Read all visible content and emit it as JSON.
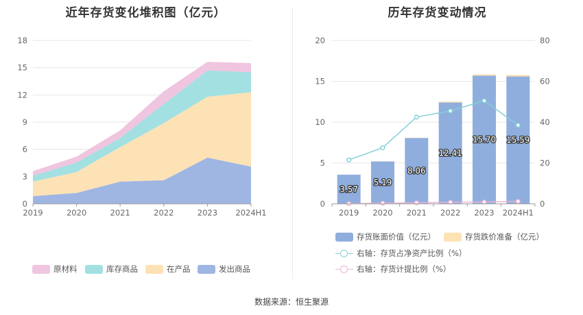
{
  "footer": "数据来源：恒生聚源",
  "chart_data": [
    {
      "type": "area",
      "stacked": true,
      "title": "近年存货变化堆积图（亿元）",
      "categories": [
        "2019",
        "2020",
        "2021",
        "2022",
        "2023",
        "2024H1"
      ],
      "ylim": [
        0,
        18
      ],
      "yticks": [
        "0",
        "3",
        "6",
        "9",
        "12",
        "15",
        "18"
      ],
      "grid": true,
      "legend_position": "bottom",
      "series": [
        {
          "name": "发出商品",
          "color": "#9fb6e3",
          "values": [
            0.85,
            1.2,
            2.45,
            2.6,
            5.1,
            4.1
          ]
        },
        {
          "name": "在产品",
          "color": "#fde2b5",
          "values": [
            1.6,
            2.3,
            3.8,
            6.3,
            6.7,
            8.2
          ]
        },
        {
          "name": "库存商品",
          "color": "#a2e0e2",
          "values": [
            0.65,
            1.05,
            1.0,
            2.1,
            2.9,
            2.2
          ]
        },
        {
          "name": "原材料",
          "color": "#efc5df",
          "values": [
            0.5,
            0.65,
            0.85,
            1.4,
            0.95,
            1.0
          ]
        }
      ],
      "legend_order": [
        "原材料",
        "库存商品",
        "在产品",
        "发出商品"
      ]
    },
    {
      "type": "bar",
      "title": "历年存货变动情况",
      "categories": [
        "2019",
        "2020",
        "2021",
        "2022",
        "2023",
        "2024H1"
      ],
      "ylim": [
        0,
        20
      ],
      "yticks": [
        "0",
        "5",
        "10",
        "15",
        "20"
      ],
      "y2lim": [
        0,
        80
      ],
      "y2ticks": [
        "0",
        "20",
        "40",
        "60",
        "80"
      ],
      "grid": true,
      "legend_position": "bottom",
      "bars": [
        {
          "name": "存货账面价值（亿元）",
          "color": "#8faedd",
          "values": [
            3.57,
            5.19,
            8.06,
            12.41,
            15.7,
            15.59
          ],
          "labels": [
            "3.57",
            "5.19",
            "8.06",
            "12.41",
            "15.70",
            "15.59"
          ]
        },
        {
          "name": "存货跌价准备（亿元）",
          "color": "#fde2b5",
          "values": [
            0.0,
            0.02,
            0.04,
            0.12,
            0.15,
            0.2
          ]
        }
      ],
      "lines": [
        {
          "name": "右轴：存货占净资产比例（%）",
          "color": "#84d0d6",
          "values": [
            21.5,
            27.5,
            42.5,
            45.5,
            50.5,
            38.5
          ]
        },
        {
          "name": "右轴：存货计提比例（%）",
          "color": "#e8b4d6",
          "values": [
            0.1,
            0.3,
            0.5,
            0.8,
            0.9,
            1.2
          ]
        }
      ]
    }
  ]
}
